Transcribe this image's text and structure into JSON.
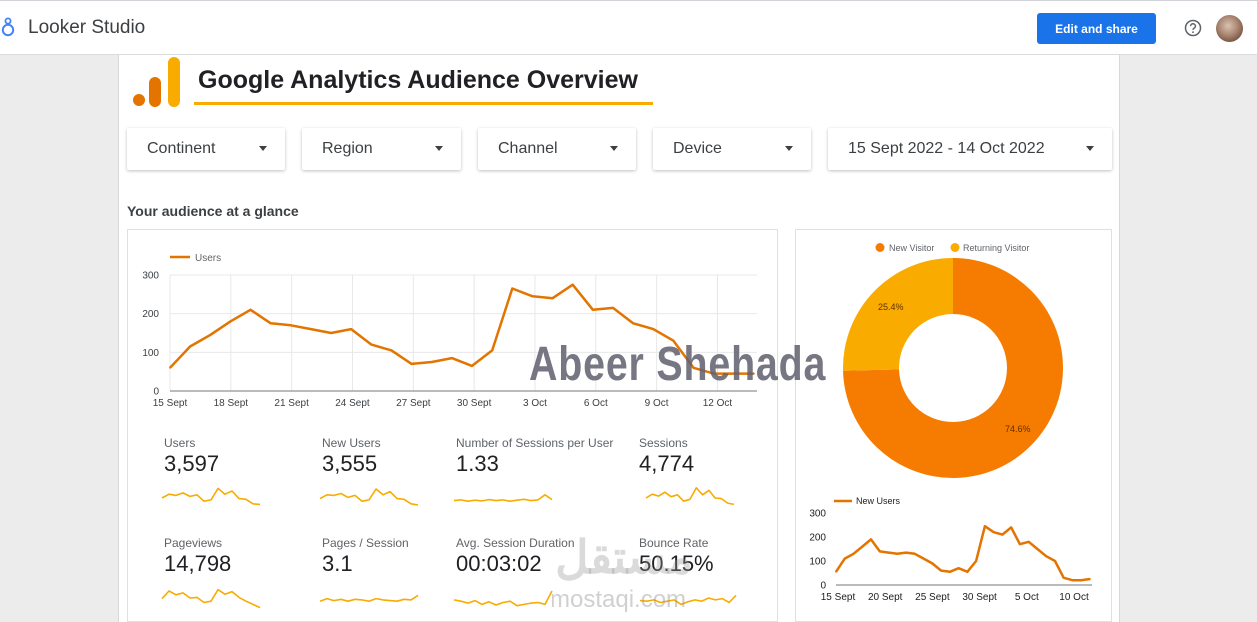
{
  "app": {
    "name": "Looker Studio"
  },
  "header": {
    "edit_share_label": "Edit and share"
  },
  "report": {
    "title": "Google Analytics Audience Overview",
    "section_title": "Your audience at a glance"
  },
  "filters": [
    {
      "label": "Continent"
    },
    {
      "label": "Region"
    },
    {
      "label": "Channel"
    },
    {
      "label": "Device"
    },
    {
      "label": "15 Sept 2022 - 14 Oct 2022"
    }
  ],
  "chart_data": [
    {
      "type": "line",
      "legend": [
        "Users"
      ],
      "x_tick_labels": [
        "15 Sept",
        "18 Sept",
        "21 Sept",
        "24 Sept",
        "27 Sept",
        "30 Sept",
        "3 Oct",
        "6 Oct",
        "9 Oct",
        "12 Oct"
      ],
      "y_tick_labels": [
        "0",
        "100",
        "200",
        "300"
      ],
      "ylim": [
        0,
        300
      ],
      "series": [
        {
          "name": "Users",
          "values": [
            60,
            115,
            145,
            180,
            210,
            175,
            170,
            160,
            150,
            160,
            120,
            105,
            70,
            75,
            85,
            65,
            105,
            265,
            245,
            240,
            275,
            210,
            215,
            175,
            160,
            130,
            60,
            45,
            45,
            45
          ]
        }
      ]
    },
    {
      "type": "pie",
      "legend": [
        "New Visitor",
        "Returning Visitor"
      ],
      "labels": [
        "New Visitor",
        "Returning Visitor"
      ],
      "values": [
        74.6,
        25.4
      ],
      "value_labels": [
        "74.6%",
        "25.4%"
      ],
      "colors": [
        "#f57c00",
        "#f9ab00"
      ]
    },
    {
      "type": "line",
      "legend": [
        "New Users"
      ],
      "x_tick_labels": [
        "15 Sept",
        "20 Sept",
        "25 Sept",
        "30 Sept",
        "5 Oct",
        "10 Oct"
      ],
      "y_tick_labels": [
        "0",
        "100",
        "200",
        "300"
      ],
      "ylim": [
        0,
        300
      ],
      "series": [
        {
          "name": "New Users",
          "values": [
            55,
            110,
            130,
            160,
            190,
            140,
            135,
            130,
            135,
            130,
            110,
            90,
            60,
            55,
            70,
            55,
            100,
            245,
            220,
            210,
            240,
            170,
            180,
            150,
            120,
            100,
            30,
            20,
            20,
            25
          ]
        }
      ]
    }
  ],
  "scorecards": [
    {
      "label": "Users",
      "value": "3,597",
      "spark": [
        50,
        62,
        58,
        66,
        55,
        60,
        40,
        44,
        80,
        62,
        72,
        48,
        46,
        32,
        30
      ]
    },
    {
      "label": "New Users",
      "value": "3,555",
      "spark": [
        48,
        60,
        58,
        64,
        52,
        58,
        40,
        44,
        78,
        60,
        70,
        48,
        46,
        32,
        28
      ]
    },
    {
      "label": "Number of Sessions per User",
      "value": "1.33",
      "spark": [
        42,
        44,
        40,
        43,
        41,
        45,
        42,
        44,
        40,
        43,
        46,
        42,
        44,
        60,
        45
      ]
    },
    {
      "label": "Sessions",
      "value": "4,774",
      "spark": [
        50,
        62,
        56,
        68,
        54,
        60,
        40,
        46,
        82,
        60,
        74,
        50,
        48,
        34,
        30
      ]
    },
    {
      "label": "Pageviews",
      "value": "14,798",
      "spark": [
        48,
        72,
        60,
        66,
        50,
        52,
        36,
        40,
        76,
        62,
        70,
        52,
        40,
        30,
        20
      ]
    },
    {
      "label": "Pages / Session",
      "value": "3.1",
      "spark": [
        40,
        48,
        42,
        46,
        40,
        46,
        44,
        40,
        48,
        44,
        42,
        40,
        46,
        44,
        58
      ]
    },
    {
      "label": "Avg. Session Duration",
      "value": "00:03:02",
      "spark": [
        44,
        40,
        34,
        42,
        30,
        38,
        28,
        36,
        40,
        26,
        30,
        34,
        36,
        30,
        72
      ]
    },
    {
      "label": "Bounce Rate",
      "value": "50.15%",
      "spark": [
        42,
        40,
        44,
        36,
        40,
        44,
        30,
        38,
        44,
        40,
        50,
        44,
        48,
        36,
        58
      ]
    }
  ],
  "overlays": {
    "watermark": "Abeer Shehada",
    "site_mark": "mostaqi.com",
    "site_mark_arabic": "مستقل"
  },
  "colors": {
    "accent": "#1a73e8",
    "orange": "#e37400",
    "spark": "#f9ab00",
    "donut_main": "#f57c00",
    "donut_second": "#f9ab00"
  },
  "icons": {
    "logo": "looker-studio-logo-icon",
    "help": "help-icon",
    "dropdown": "caret-down-icon"
  }
}
